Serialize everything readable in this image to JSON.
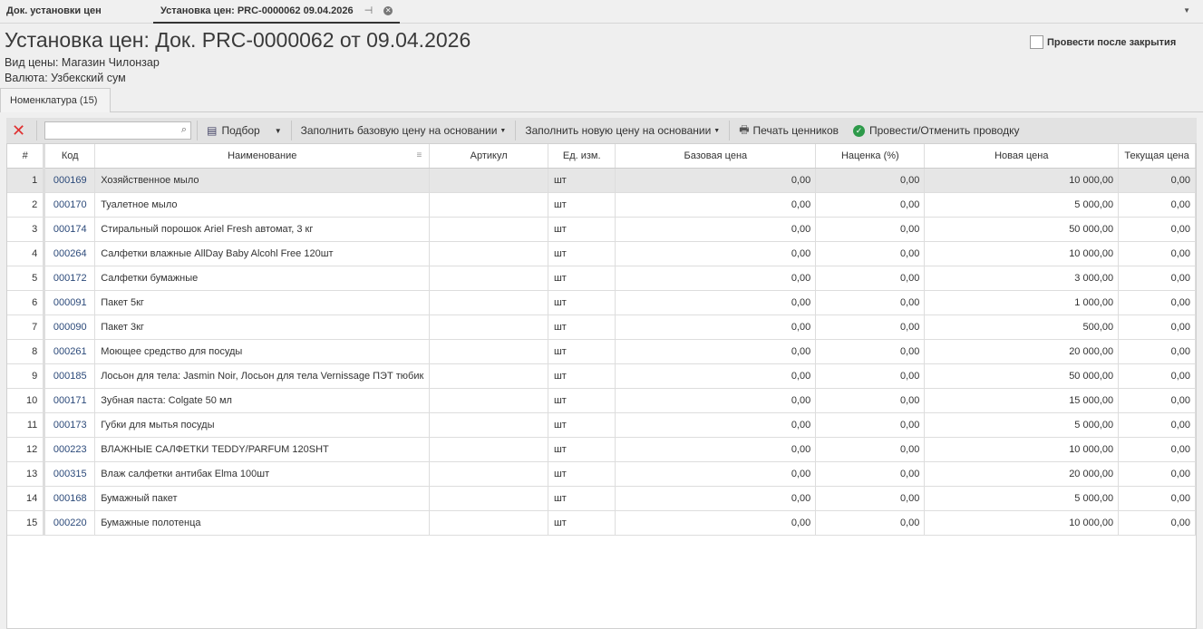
{
  "tabs": [
    {
      "label": "Док. установки цен"
    },
    {
      "label": "Установка цен: PRC-0000062 09.04.2026",
      "active": true
    }
  ],
  "title": "Установка цен: Док. PRC-0000062 от 09.04.2026",
  "price_type": "Вид цены: Магазин Чилонзар",
  "currency": "Валюта: Узбекский сум",
  "post_after_close": {
    "label": "Провести после закрытия",
    "checked": false
  },
  "subtab": "Номенклатура (15)",
  "toolbar": {
    "search_value": "",
    "select": "Подбор",
    "fill_base": "Заполнить базовую цену на основании",
    "fill_new": "Заполнить новую цену на основании",
    "print": "Печать ценников",
    "post": "Провести/Отменить проводку"
  },
  "colors": {
    "delete": "#e03030",
    "post_icon": "#2e9a4a"
  },
  "columns": [
    "#",
    "Код",
    "Наименование",
    "Артикул",
    "Ед. изм.",
    "Базовая цена",
    "Наценка (%)",
    "Новая цена",
    "Текущая цена"
  ],
  "rows": [
    [
      "1",
      "000169",
      "Хозяйственное мыло",
      "",
      "шт",
      "0,00",
      "0,00",
      "10 000,00",
      "0,00"
    ],
    [
      "2",
      "000170",
      "Туалетное мыло",
      "",
      "шт",
      "0,00",
      "0,00",
      "5 000,00",
      "0,00"
    ],
    [
      "3",
      "000174",
      "Стиральный порошок Ariel Fresh автомат, 3 кг",
      "",
      "шт",
      "0,00",
      "0,00",
      "50 000,00",
      "0,00"
    ],
    [
      "4",
      "000264",
      "Салфетки влажные AllDay Baby Alcohl Free 120шт",
      "",
      "шт",
      "0,00",
      "0,00",
      "10 000,00",
      "0,00"
    ],
    [
      "5",
      "000172",
      "Салфетки бумажные",
      "",
      "шт",
      "0,00",
      "0,00",
      "3 000,00",
      "0,00"
    ],
    [
      "6",
      "000091",
      "Пакет 5кг",
      "",
      "шт",
      "0,00",
      "0,00",
      "1 000,00",
      "0,00"
    ],
    [
      "7",
      "000090",
      "Пакет 3кг",
      "",
      "шт",
      "0,00",
      "0,00",
      "500,00",
      "0,00"
    ],
    [
      "8",
      "000261",
      "Моющее средство для посуды",
      "",
      "шт",
      "0,00",
      "0,00",
      "20 000,00",
      "0,00"
    ],
    [
      "9",
      "000185",
      "Лосьон для тела: Jasmin Noir, Лосьон для тела Vernissage ПЭТ тюбик",
      "",
      "шт",
      "0,00",
      "0,00",
      "50 000,00",
      "0,00"
    ],
    [
      "10",
      "000171",
      "Зубная паста: Colgate 50 мл",
      "",
      "шт",
      "0,00",
      "0,00",
      "15 000,00",
      "0,00"
    ],
    [
      "11",
      "000173",
      "Губки для мытья посуды",
      "",
      "шт",
      "0,00",
      "0,00",
      "5 000,00",
      "0,00"
    ],
    [
      "12",
      "000223",
      "ВЛАЖНЫЕ САЛФЕТКИ TEDDY/PARFUM 120SHT",
      "",
      "шт",
      "0,00",
      "0,00",
      "10 000,00",
      "0,00"
    ],
    [
      "13",
      "000315",
      "Влаж салфетки антибак Elma 100шт",
      "",
      "шт",
      "0,00",
      "0,00",
      "20 000,00",
      "0,00"
    ],
    [
      "14",
      "000168",
      "Бумажный пакет",
      "",
      "шт",
      "0,00",
      "0,00",
      "5 000,00",
      "0,00"
    ],
    [
      "15",
      "000220",
      "Бумажные полотенца",
      "",
      "шт",
      "0,00",
      "0,00",
      "10 000,00",
      "0,00"
    ]
  ]
}
